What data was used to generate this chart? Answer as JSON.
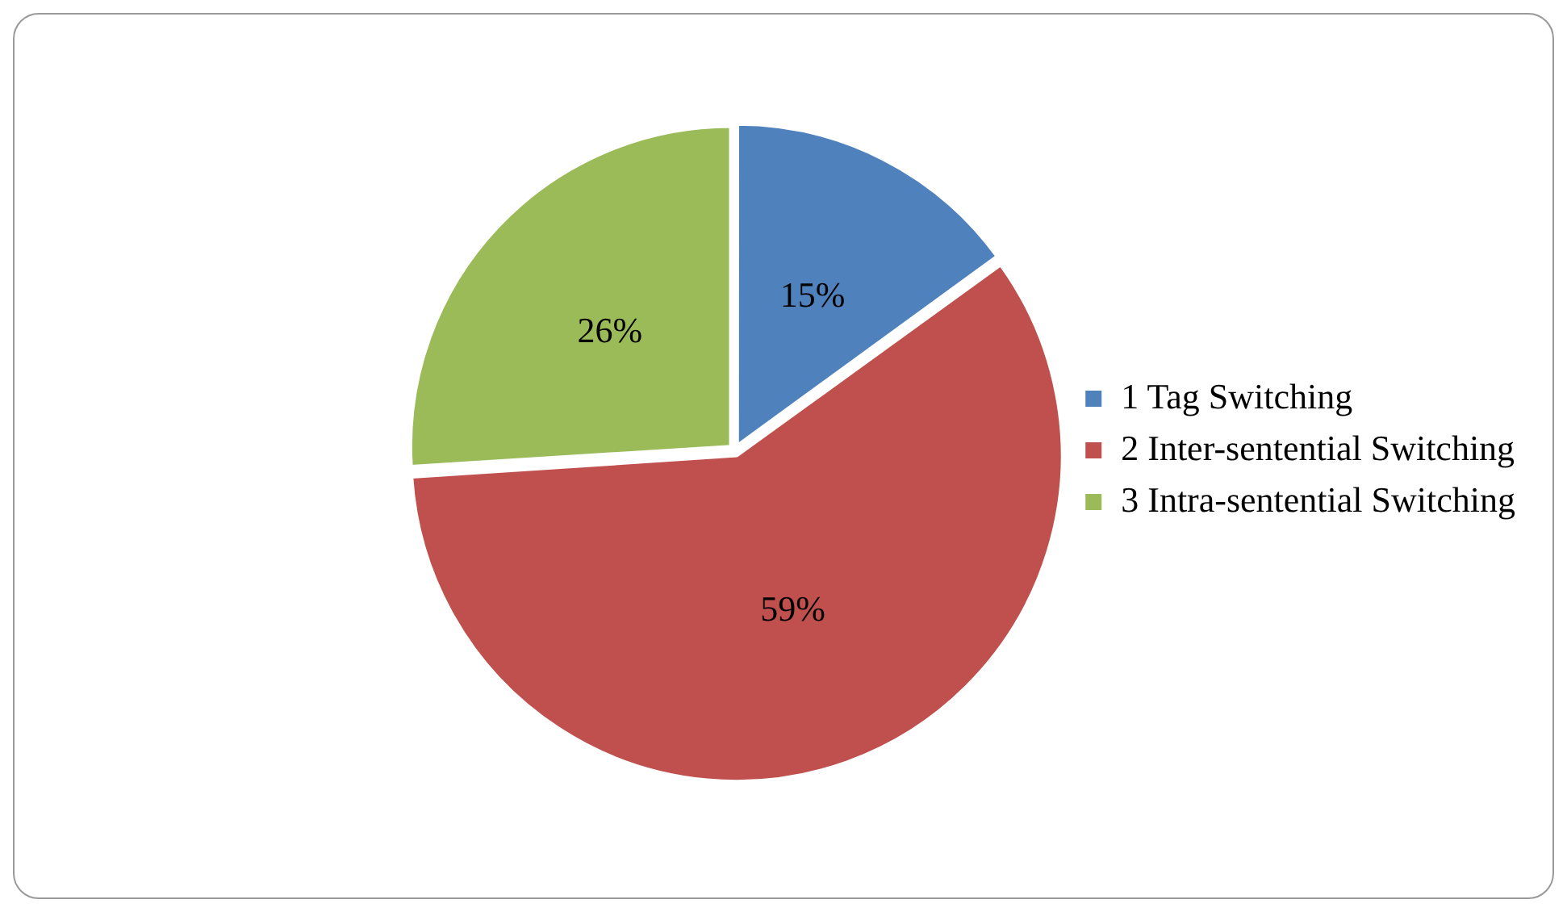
{
  "chart_data": {
    "type": "pie",
    "categories": [
      "1 Tag Switching",
      "2 Inter-sentential Switching",
      "3 Intra-sentential Switching"
    ],
    "values": [
      15,
      59,
      26
    ],
    "colors": [
      "#4f81bd",
      "#c0504d",
      "#9bbb59"
    ],
    "value_labels": [
      "15%",
      "59%",
      "26%"
    ],
    "legend": "right"
  }
}
